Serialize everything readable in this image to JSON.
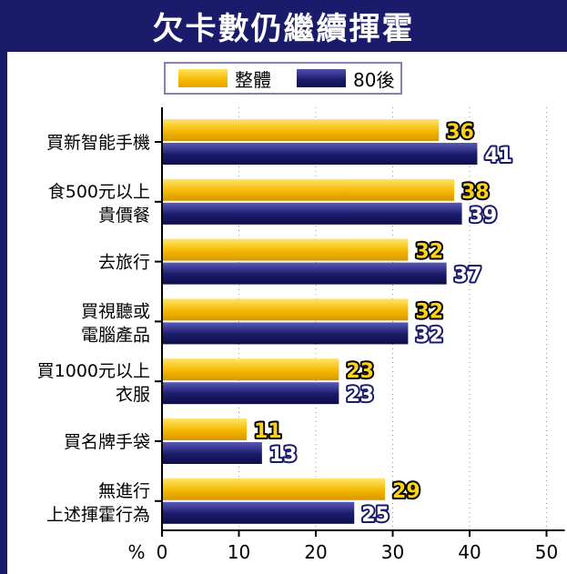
{
  "title": "欠卡數仍繼續揮霍",
  "legend": {
    "series_a": "整體",
    "series_b": "80後"
  },
  "colors": {
    "series_a": "#f5b800",
    "series_b": "#1b1b6b",
    "frame": "#1b1b6b"
  },
  "chart_data": {
    "type": "bar",
    "orientation": "horizontal",
    "categories": [
      [
        "買新智能手機"
      ],
      [
        "食500元以上",
        "貴價餐"
      ],
      [
        "去旅行"
      ],
      [
        "買視聽或",
        "電腦產品"
      ],
      [
        "買1000元以上",
        "衣服"
      ],
      [
        "買名牌手袋"
      ],
      [
        "無進行",
        "上述揮霍行為"
      ]
    ],
    "series": [
      {
        "name": "整體",
        "values": [
          36,
          38,
          32,
          32,
          23,
          11,
          29
        ]
      },
      {
        "name": "80後",
        "values": [
          41,
          39,
          37,
          32,
          23,
          13,
          25
        ]
      }
    ],
    "xlim": [
      0,
      50
    ],
    "xticks": [
      0,
      10,
      20,
      30,
      40,
      50
    ],
    "xunit": "%",
    "grid": "vertical dotted",
    "legend_position": "top"
  }
}
